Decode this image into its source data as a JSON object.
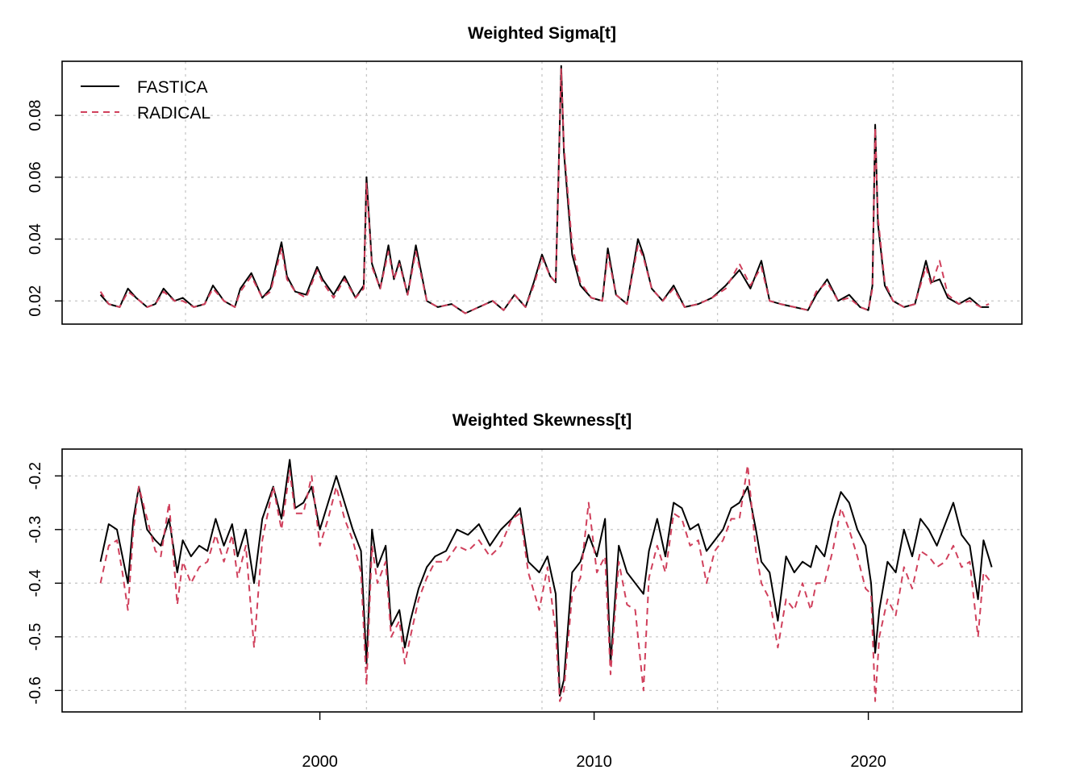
{
  "colors": {
    "fastica": "#000000",
    "radical": "#d0405c",
    "grid": "#c8c8c8"
  },
  "chart_data": [
    {
      "type": "line",
      "title": "Weighted Sigma[t]",
      "xlabel": "",
      "ylabel": "",
      "xlim": [
        1990.6,
        2025.6
      ],
      "ylim": [
        0.0125,
        0.0975
      ],
      "yticks": [
        0.02,
        0.04,
        0.06,
        0.08
      ],
      "ytick_labels": [
        "0.02",
        "0.04",
        "0.06",
        "0.08"
      ],
      "grid": true,
      "grid_x": [
        1995.1,
        2001.7,
        2008.1,
        2014.5,
        2020.9
      ],
      "legend": {
        "placement": "top-left",
        "entries": [
          "FASTICA",
          "RADICAL"
        ]
      },
      "series": [
        {
          "name": "FASTICA",
          "style": "solid",
          "x": [
            1992.0,
            1992.3,
            1992.7,
            1993.0,
            1993.3,
            1993.7,
            1994.0,
            1994.3,
            1994.7,
            1995.0,
            1995.4,
            1995.8,
            1996.1,
            1996.5,
            1996.9,
            1997.1,
            1997.5,
            1997.9,
            1998.2,
            1998.6,
            1998.8,
            1999.1,
            1999.5,
            1999.9,
            2000.1,
            2000.5,
            2000.9,
            2001.3,
            2001.6,
            2001.7,
            2001.9,
            2002.2,
            2002.5,
            2002.7,
            2002.9,
            2003.2,
            2003.5,
            2003.9,
            2004.3,
            2004.8,
            2005.3,
            2005.8,
            2006.3,
            2006.7,
            2007.1,
            2007.5,
            2007.8,
            2008.1,
            2008.4,
            2008.6,
            2008.7,
            2008.8,
            2008.9,
            2009.2,
            2009.5,
            2009.9,
            2010.3,
            2010.5,
            2010.8,
            2011.2,
            2011.6,
            2011.8,
            2012.1,
            2012.5,
            2012.9,
            2013.3,
            2013.8,
            2014.3,
            2014.8,
            2015.3,
            2015.7,
            2016.1,
            2016.4,
            2016.8,
            2017.3,
            2017.8,
            2018.1,
            2018.5,
            2018.9,
            2019.3,
            2019.7,
            2020.0,
            2020.15,
            2020.25,
            2020.35,
            2020.6,
            2020.9,
            2021.3,
            2021.7,
            2022.1,
            2022.3,
            2022.6,
            2022.9,
            2023.3,
            2023.7,
            2024.1,
            2024.4
          ],
          "values": [
            0.022,
            0.019,
            0.018,
            0.024,
            0.021,
            0.018,
            0.019,
            0.024,
            0.02,
            0.021,
            0.018,
            0.019,
            0.025,
            0.02,
            0.018,
            0.024,
            0.029,
            0.021,
            0.024,
            0.039,
            0.028,
            0.023,
            0.022,
            0.031,
            0.027,
            0.022,
            0.028,
            0.021,
            0.025,
            0.06,
            0.032,
            0.024,
            0.038,
            0.027,
            0.033,
            0.022,
            0.038,
            0.02,
            0.018,
            0.019,
            0.016,
            0.018,
            0.02,
            0.017,
            0.022,
            0.018,
            0.026,
            0.035,
            0.028,
            0.026,
            0.06,
            0.096,
            0.068,
            0.035,
            0.025,
            0.021,
            0.02,
            0.037,
            0.022,
            0.019,
            0.04,
            0.035,
            0.024,
            0.02,
            0.025,
            0.018,
            0.019,
            0.021,
            0.025,
            0.03,
            0.024,
            0.033,
            0.02,
            0.019,
            0.018,
            0.017,
            0.022,
            0.027,
            0.02,
            0.022,
            0.018,
            0.017,
            0.025,
            0.077,
            0.045,
            0.025,
            0.02,
            0.018,
            0.019,
            0.033,
            0.026,
            0.027,
            0.021,
            0.019,
            0.021,
            0.018,
            0.018
          ]
        },
        {
          "name": "RADICAL",
          "style": "dashed",
          "x": [
            1992.0,
            1992.3,
            1992.7,
            1993.0,
            1993.3,
            1993.7,
            1994.0,
            1994.3,
            1994.7,
            1995.0,
            1995.4,
            1995.8,
            1996.1,
            1996.5,
            1996.9,
            1997.1,
            1997.5,
            1997.9,
            1998.2,
            1998.6,
            1998.8,
            1999.1,
            1999.5,
            1999.9,
            2000.1,
            2000.5,
            2000.9,
            2001.3,
            2001.6,
            2001.7,
            2001.9,
            2002.2,
            2002.5,
            2002.7,
            2002.9,
            2003.2,
            2003.5,
            2003.9,
            2004.3,
            2004.8,
            2005.3,
            2005.8,
            2006.3,
            2006.7,
            2007.1,
            2007.5,
            2007.8,
            2008.1,
            2008.4,
            2008.6,
            2008.7,
            2008.8,
            2008.9,
            2009.2,
            2009.5,
            2009.9,
            2010.3,
            2010.5,
            2010.8,
            2011.2,
            2011.6,
            2011.8,
            2012.1,
            2012.5,
            2012.9,
            2013.3,
            2013.8,
            2014.3,
            2014.8,
            2015.3,
            2015.7,
            2016.1,
            2016.4,
            2016.8,
            2017.3,
            2017.8,
            2018.1,
            2018.5,
            2018.9,
            2019.3,
            2019.7,
            2020.0,
            2020.15,
            2020.25,
            2020.35,
            2020.6,
            2020.9,
            2021.3,
            2021.7,
            2022.1,
            2022.3,
            2022.6,
            2022.9,
            2023.3,
            2023.7,
            2024.1,
            2024.4
          ],
          "values": [
            0.023,
            0.019,
            0.018,
            0.023,
            0.021,
            0.018,
            0.019,
            0.023,
            0.02,
            0.02,
            0.018,
            0.019,
            0.024,
            0.02,
            0.018,
            0.023,
            0.028,
            0.021,
            0.023,
            0.037,
            0.027,
            0.023,
            0.021,
            0.03,
            0.026,
            0.021,
            0.027,
            0.021,
            0.024,
            0.058,
            0.031,
            0.024,
            0.036,
            0.027,
            0.032,
            0.022,
            0.036,
            0.02,
            0.018,
            0.019,
            0.016,
            0.018,
            0.02,
            0.017,
            0.022,
            0.018,
            0.025,
            0.034,
            0.028,
            0.026,
            0.058,
            0.095,
            0.07,
            0.038,
            0.026,
            0.021,
            0.02,
            0.035,
            0.022,
            0.019,
            0.038,
            0.034,
            0.024,
            0.02,
            0.024,
            0.018,
            0.019,
            0.021,
            0.024,
            0.032,
            0.025,
            0.031,
            0.02,
            0.019,
            0.018,
            0.017,
            0.023,
            0.026,
            0.02,
            0.021,
            0.018,
            0.017,
            0.024,
            0.076,
            0.047,
            0.026,
            0.02,
            0.018,
            0.019,
            0.031,
            0.025,
            0.033,
            0.022,
            0.019,
            0.02,
            0.018,
            0.019
          ]
        }
      ]
    },
    {
      "type": "line",
      "title": "Weighted Skewness[t]",
      "xlabel": "",
      "ylabel": "",
      "xlim": [
        1990.6,
        2025.6
      ],
      "ylim": [
        -0.64,
        -0.15
      ],
      "yticks": [
        -0.6,
        -0.5,
        -0.4,
        -0.3,
        -0.2
      ],
      "ytick_labels": [
        "-0.6",
        "-0.5",
        "-0.4",
        "-0.3",
        "-0.2"
      ],
      "xticks": [
        2000,
        2010,
        2020
      ],
      "xtick_labels": [
        "2000",
        "2010",
        "2020"
      ],
      "grid": true,
      "grid_x": [
        1995.1,
        2001.7,
        2008.1,
        2014.5,
        2020.9
      ],
      "series": [
        {
          "name": "FASTICA",
          "style": "solid",
          "x": [
            1992.0,
            1992.3,
            1992.6,
            1992.8,
            1993.0,
            1993.2,
            1993.4,
            1993.7,
            1994.0,
            1994.2,
            1994.5,
            1994.8,
            1995.0,
            1995.3,
            1995.6,
            1995.9,
            1996.2,
            1996.5,
            1996.8,
            1997.0,
            1997.3,
            1997.6,
            1997.9,
            1998.1,
            1998.3,
            1998.6,
            1998.9,
            1999.1,
            1999.4,
            1999.7,
            2000.0,
            2000.3,
            2000.6,
            2000.9,
            2001.2,
            2001.5,
            2001.7,
            2001.9,
            2002.1,
            2002.4,
            2002.6,
            2002.9,
            2003.1,
            2003.3,
            2003.6,
            2003.9,
            2004.2,
            2004.6,
            2005.0,
            2005.4,
            2005.8,
            2006.2,
            2006.6,
            2007.0,
            2007.3,
            2007.6,
            2008.0,
            2008.3,
            2008.6,
            2008.75,
            2008.9,
            2009.2,
            2009.5,
            2009.8,
            2010.1,
            2010.4,
            2010.6,
            2010.9,
            2011.2,
            2011.5,
            2011.8,
            2012.0,
            2012.3,
            2012.6,
            2012.9,
            2013.2,
            2013.5,
            2013.8,
            2014.1,
            2014.4,
            2014.7,
            2015.0,
            2015.3,
            2015.6,
            2015.9,
            2016.1,
            2016.4,
            2016.7,
            2017.0,
            2017.3,
            2017.6,
            2017.9,
            2018.1,
            2018.4,
            2018.7,
            2019.0,
            2019.3,
            2019.6,
            2019.9,
            2020.1,
            2020.25,
            2020.4,
            2020.7,
            2021.0,
            2021.3,
            2021.6,
            2021.9,
            2022.2,
            2022.5,
            2022.8,
            2023.1,
            2023.4,
            2023.7,
            2024.0,
            2024.2,
            2024.5
          ],
          "values": [
            -0.36,
            -0.29,
            -0.3,
            -0.35,
            -0.4,
            -0.28,
            -0.22,
            -0.3,
            -0.32,
            -0.33,
            -0.28,
            -0.38,
            -0.32,
            -0.35,
            -0.33,
            -0.34,
            -0.28,
            -0.33,
            -0.29,
            -0.35,
            -0.3,
            -0.4,
            -0.28,
            -0.25,
            -0.22,
            -0.28,
            -0.17,
            -0.26,
            -0.25,
            -0.22,
            -0.3,
            -0.25,
            -0.2,
            -0.25,
            -0.3,
            -0.34,
            -0.55,
            -0.3,
            -0.37,
            -0.33,
            -0.48,
            -0.45,
            -0.52,
            -0.47,
            -0.41,
            -0.37,
            -0.35,
            -0.34,
            -0.3,
            -0.31,
            -0.29,
            -0.33,
            -0.3,
            -0.28,
            -0.26,
            -0.36,
            -0.38,
            -0.35,
            -0.42,
            -0.61,
            -0.58,
            -0.38,
            -0.36,
            -0.31,
            -0.35,
            -0.28,
            -0.55,
            -0.33,
            -0.38,
            -0.4,
            -0.42,
            -0.34,
            -0.28,
            -0.35,
            -0.25,
            -0.26,
            -0.3,
            -0.29,
            -0.34,
            -0.32,
            -0.3,
            -0.26,
            -0.25,
            -0.22,
            -0.3,
            -0.36,
            -0.38,
            -0.47,
            -0.35,
            -0.38,
            -0.36,
            -0.37,
            -0.33,
            -0.35,
            -0.28,
            -0.23,
            -0.25,
            -0.3,
            -0.33,
            -0.4,
            -0.53,
            -0.45,
            -0.36,
            -0.38,
            -0.3,
            -0.35,
            -0.28,
            -0.3,
            -0.33,
            -0.29,
            -0.25,
            -0.31,
            -0.33,
            -0.43,
            -0.32,
            -0.37
          ]
        },
        {
          "name": "RADICAL",
          "style": "dashed",
          "x": [
            1992.0,
            1992.3,
            1992.6,
            1992.8,
            1993.0,
            1993.2,
            1993.4,
            1993.7,
            1994.0,
            1994.2,
            1994.5,
            1994.8,
            1995.0,
            1995.3,
            1995.6,
            1995.9,
            1996.2,
            1996.5,
            1996.8,
            1997.0,
            1997.3,
            1997.6,
            1997.9,
            1998.1,
            1998.3,
            1998.6,
            1998.9,
            1999.1,
            1999.4,
            1999.7,
            2000.0,
            2000.3,
            2000.6,
            2000.9,
            2001.2,
            2001.5,
            2001.7,
            2001.9,
            2002.1,
            2002.4,
            2002.6,
            2002.9,
            2003.1,
            2003.3,
            2003.6,
            2003.9,
            2004.2,
            2004.6,
            2005.0,
            2005.4,
            2005.8,
            2006.2,
            2006.6,
            2007.0,
            2007.3,
            2007.6,
            2008.0,
            2008.3,
            2008.6,
            2008.75,
            2008.9,
            2009.2,
            2009.5,
            2009.8,
            2010.1,
            2010.4,
            2010.6,
            2010.9,
            2011.2,
            2011.5,
            2011.8,
            2012.0,
            2012.3,
            2012.6,
            2012.9,
            2013.2,
            2013.5,
            2013.8,
            2014.1,
            2014.4,
            2014.7,
            2015.0,
            2015.3,
            2015.6,
            2015.9,
            2016.1,
            2016.4,
            2016.7,
            2017.0,
            2017.3,
            2017.6,
            2017.9,
            2018.1,
            2018.4,
            2018.7,
            2019.0,
            2019.3,
            2019.6,
            2019.9,
            2020.1,
            2020.25,
            2020.4,
            2020.7,
            2021.0,
            2021.3,
            2021.6,
            2021.9,
            2022.2,
            2022.5,
            2022.8,
            2023.1,
            2023.4,
            2023.7,
            2024.0,
            2024.2,
            2024.5
          ],
          "values": [
            -0.4,
            -0.33,
            -0.32,
            -0.38,
            -0.45,
            -0.3,
            -0.22,
            -0.28,
            -0.34,
            -0.35,
            -0.25,
            -0.44,
            -0.36,
            -0.4,
            -0.37,
            -0.36,
            -0.31,
            -0.36,
            -0.31,
            -0.39,
            -0.33,
            -0.52,
            -0.32,
            -0.27,
            -0.22,
            -0.3,
            -0.19,
            -0.27,
            -0.27,
            -0.2,
            -0.33,
            -0.28,
            -0.22,
            -0.28,
            -0.32,
            -0.38,
            -0.59,
            -0.33,
            -0.4,
            -0.36,
            -0.5,
            -0.47,
            -0.55,
            -0.5,
            -0.43,
            -0.39,
            -0.36,
            -0.36,
            -0.33,
            -0.34,
            -0.32,
            -0.35,
            -0.33,
            -0.28,
            -0.27,
            -0.38,
            -0.45,
            -0.37,
            -0.49,
            -0.62,
            -0.6,
            -0.42,
            -0.39,
            -0.25,
            -0.38,
            -0.35,
            -0.57,
            -0.36,
            -0.44,
            -0.45,
            -0.6,
            -0.39,
            -0.33,
            -0.38,
            -0.27,
            -0.28,
            -0.33,
            -0.32,
            -0.4,
            -0.34,
            -0.32,
            -0.28,
            -0.28,
            -0.18,
            -0.34,
            -0.4,
            -0.43,
            -0.52,
            -0.43,
            -0.45,
            -0.4,
            -0.45,
            -0.4,
            -0.4,
            -0.34,
            -0.26,
            -0.3,
            -0.35,
            -0.41,
            -0.42,
            -0.62,
            -0.5,
            -0.43,
            -0.46,
            -0.37,
            -0.41,
            -0.34,
            -0.35,
            -0.37,
            -0.36,
            -0.33,
            -0.37,
            -0.36,
            -0.5,
            -0.38,
            -0.4
          ]
        }
      ]
    }
  ]
}
